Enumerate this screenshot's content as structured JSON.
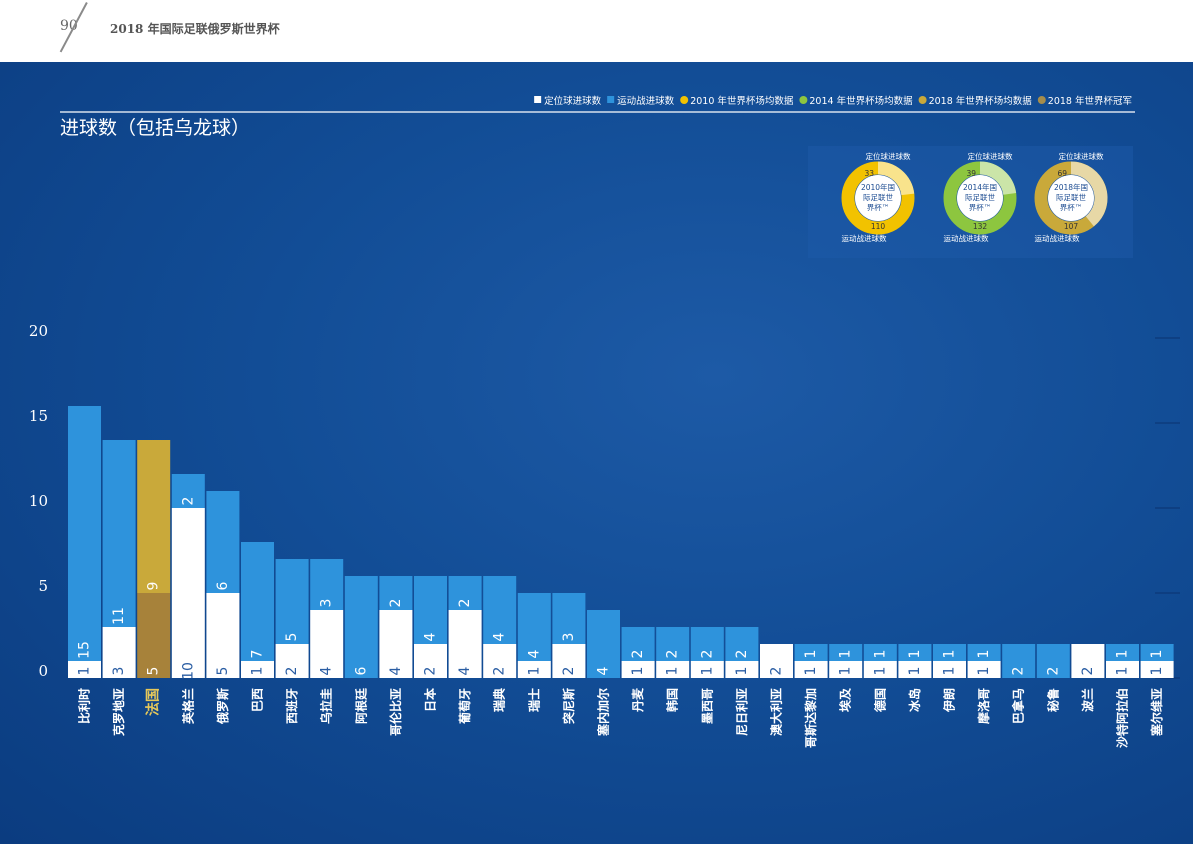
{
  "header": {
    "page_number": "90",
    "title": "2018 年国际足联俄罗斯世界杯"
  },
  "legend": [
    {
      "label": "定位球进球数",
      "color": "#ffffff"
    },
    {
      "label": "运动战进球数",
      "color": "#2e93dc"
    },
    {
      "label": "2010 年世界杯场均数据",
      "color": "#f2c200"
    },
    {
      "label": "2014 年世界杯场均数据",
      "color": "#8dc63f"
    },
    {
      "label": "2018 年世界杯场均数据",
      "color": "#c9a93a"
    },
    {
      "label": "2018 年世界杯冠军",
      "color": "#a58d4c"
    }
  ],
  "donuts": [
    {
      "top_label": "定位球进球数",
      "bottom_label": "运动战进球数",
      "set_piece": "33",
      "open_play": "110",
      "center_text": [
        "2010年国",
        "际足联世",
        "界杯™"
      ],
      "ring_color": "#f2c200"
    },
    {
      "top_label": "定位球进球数",
      "bottom_label": "运动战进球数",
      "set_piece": "39",
      "open_play": "132",
      "center_text": [
        "2014年国",
        "际足联世",
        "界杯™"
      ],
      "ring_color": "#8dc63f"
    },
    {
      "top_label": "定位球进球数",
      "bottom_label": "运动战进球数",
      "set_piece": "69",
      "open_play": "107",
      "center_text": [
        "2018年国",
        "际足联世",
        "界杯™"
      ],
      "ring_color": "#c9a93a"
    }
  ],
  "colors": {
    "set_piece": "#ffffff",
    "open_play": "#2e93dc",
    "champion_open": "#c9a93a",
    "champion_set": "#a7823a",
    "champion_label": "#e6c85a",
    "label": "#ffffff",
    "axis_text": "#ffffff"
  },
  "chart_data": {
    "type": "bar",
    "stacked": true,
    "title": "进球数（包括乌龙球）",
    "yticks": [
      "0",
      "5",
      "10",
      "15",
      "20"
    ],
    "ylim": [
      0,
      20
    ],
    "champion": "法国",
    "categories": [
      "比利时",
      "克罗地亚",
      "法国",
      "英格兰",
      "俄罗斯",
      "巴西",
      "西班牙",
      "乌拉圭",
      "阿根廷",
      "哥伦比亚",
      "日本",
      "葡萄牙",
      "瑞典",
      "瑞士",
      "突尼斯",
      "塞内加尔",
      "丹麦",
      "韩国",
      "墨西哥",
      "尼日利亚",
      "澳大利亚",
      "哥斯达黎加",
      "埃及",
      "德国",
      "冰岛",
      "伊朗",
      "摩洛哥",
      "巴拿马",
      "秘鲁",
      "波兰",
      "沙特阿拉伯",
      "塞尔维亚"
    ],
    "series": [
      {
        "name": "定位球进球数",
        "values": [
          1,
          3,
          5,
          10,
          5,
          1,
          2,
          4,
          0,
          4,
          2,
          4,
          2,
          1,
          2,
          0,
          1,
          1,
          1,
          1,
          2,
          1,
          1,
          1,
          1,
          1,
          1,
          0,
          0,
          2,
          1,
          1
        ],
        "labels": [
          "1",
          "3",
          "5",
          "10",
          "5",
          "1",
          "2",
          "4",
          "",
          "4",
          "2",
          "4",
          "2",
          "1",
          "2",
          "",
          "1",
          "1",
          "1",
          "1",
          "2",
          "1",
          "1",
          "1",
          "1",
          "1",
          "1",
          "",
          "",
          "2",
          "1",
          "1"
        ]
      },
      {
        "name": "运动战进球数",
        "values": [
          15,
          11,
          9,
          2,
          6,
          7,
          5,
          3,
          6,
          2,
          4,
          2,
          4,
          4,
          3,
          4,
          2,
          2,
          2,
          2,
          0,
          1,
          1,
          1,
          1,
          1,
          1,
          2,
          2,
          0,
          1,
          1
        ],
        "labels": [
          "15",
          "11",
          "9",
          "2",
          "6",
          "7",
          "5",
          "3",
          "6",
          "2",
          "4",
          "2",
          "4",
          "4",
          "3",
          "4",
          "2",
          "2",
          "2",
          "2",
          "",
          "1",
          "1",
          "1",
          "1",
          "1",
          "1",
          "2",
          "2",
          "",
          "1",
          "1"
        ]
      }
    ]
  }
}
